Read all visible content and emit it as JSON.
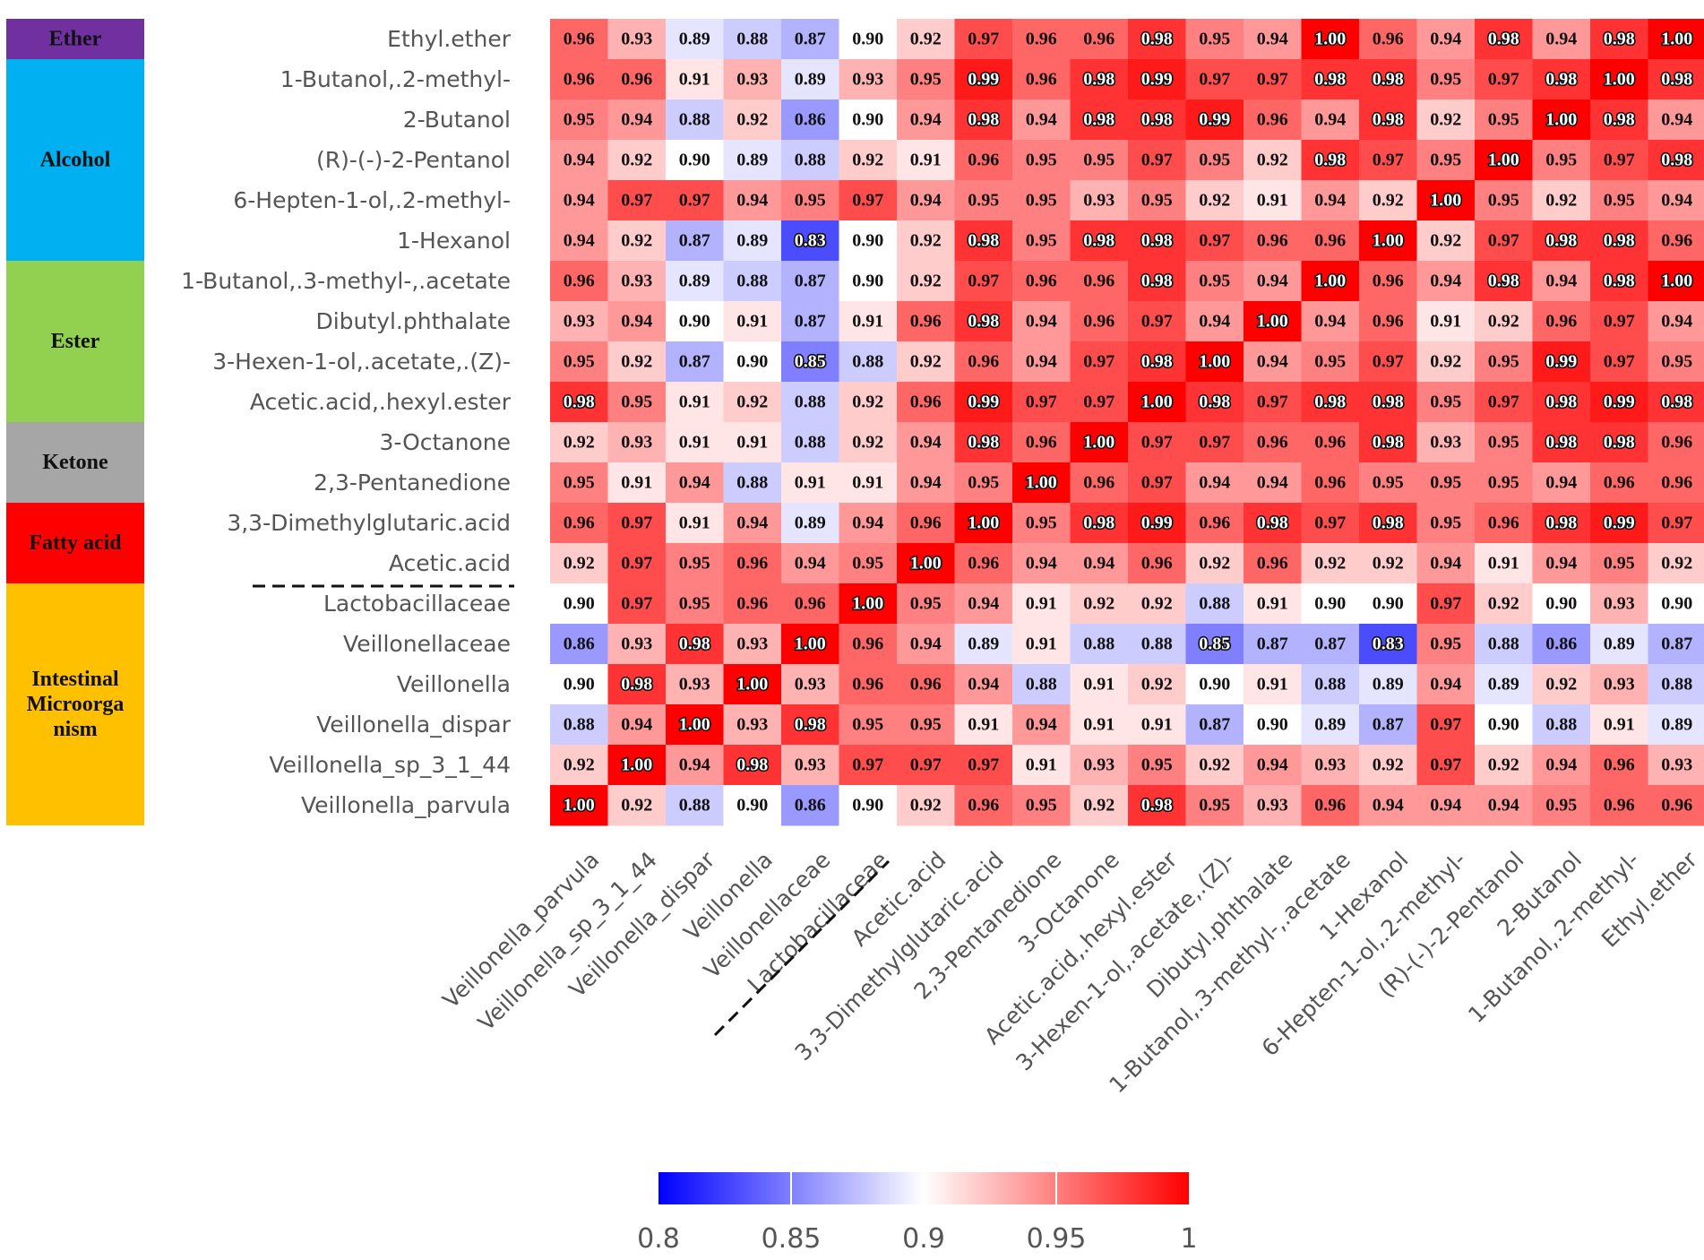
{
  "chart_data": {
    "type": "heatmap",
    "title": "",
    "row_labels": [
      "Ethyl.ether",
      "1-Butanol,.2-methyl-",
      "2-Butanol",
      "(R)-(-)-2-Pentanol",
      "6-Hepten-1-ol,.2-methyl-",
      "1-Hexanol",
      "1-Butanol,.3-methyl-,.acetate",
      "Dibutyl.phthalate",
      "3-Hexen-1-ol,.acetate,.(Z)-",
      "Acetic.acid,.hexyl.ester",
      "3-Octanone",
      "2,3-Pentanedione",
      "3,3-Dimethylglutaric.acid",
      "Acetic.acid",
      "Lactobacillaceae",
      "Veillonellaceae",
      "Veillonella",
      "Veillonella_dispar",
      "Veillonella_sp_3_1_44",
      "Veillonella_parvula"
    ],
    "col_labels": [
      "Veillonella_parvula",
      "Veillonella_sp_3_1_44",
      "Veillonella_dispar",
      "Veillonella",
      "Veillonellaceae",
      "Lactobacillaceae",
      "Acetic.acid",
      "3,3-Dimethylglutaric.acid",
      "2,3-Pentanedione",
      "3-Octanone",
      "Acetic.acid,.hexyl.ester",
      "3-Hexen-1-ol,.acetate,.(Z)-",
      "Dibutyl.phthalate",
      "1-Butanol,.3-methyl-,.acetate",
      "1-Hexanol",
      "6-Hepten-1-ol,.2-methyl-",
      "(R)-(-)-2-Pentanol",
      "2-Butanol",
      "1-Butanol,.2-methyl-",
      "Ethyl.ether"
    ],
    "values": [
      [
        0.96,
        0.93,
        0.89,
        0.88,
        0.87,
        0.9,
        0.92,
        0.97,
        0.96,
        0.96,
        0.98,
        0.95,
        0.94,
        1.0,
        0.96,
        0.94,
        0.98,
        0.94,
        0.98,
        1.0
      ],
      [
        0.96,
        0.96,
        0.91,
        0.93,
        0.89,
        0.93,
        0.95,
        0.99,
        0.96,
        0.98,
        0.99,
        0.97,
        0.97,
        0.98,
        0.98,
        0.95,
        0.97,
        0.98,
        1.0,
        0.98
      ],
      [
        0.95,
        0.94,
        0.88,
        0.92,
        0.86,
        0.9,
        0.94,
        0.98,
        0.94,
        0.98,
        0.98,
        0.99,
        0.96,
        0.94,
        0.98,
        0.92,
        0.95,
        1.0,
        0.98,
        0.94
      ],
      [
        0.94,
        0.92,
        0.9,
        0.89,
        0.88,
        0.92,
        0.91,
        0.96,
        0.95,
        0.95,
        0.97,
        0.95,
        0.92,
        0.98,
        0.97,
        0.95,
        1.0,
        0.95,
        0.97,
        0.98
      ],
      [
        0.94,
        0.97,
        0.97,
        0.94,
        0.95,
        0.97,
        0.94,
        0.95,
        0.95,
        0.93,
        0.95,
        0.92,
        0.91,
        0.94,
        0.92,
        1.0,
        0.95,
        0.92,
        0.95,
        0.94
      ],
      [
        0.94,
        0.92,
        0.87,
        0.89,
        0.83,
        0.9,
        0.92,
        0.98,
        0.95,
        0.98,
        0.98,
        0.97,
        0.96,
        0.96,
        1.0,
        0.92,
        0.97,
        0.98,
        0.98,
        0.96
      ],
      [
        0.96,
        0.93,
        0.89,
        0.88,
        0.87,
        0.9,
        0.92,
        0.97,
        0.96,
        0.96,
        0.98,
        0.95,
        0.94,
        1.0,
        0.96,
        0.94,
        0.98,
        0.94,
        0.98,
        1.0
      ],
      [
        0.93,
        0.94,
        0.9,
        0.91,
        0.87,
        0.91,
        0.96,
        0.98,
        0.94,
        0.96,
        0.97,
        0.94,
        1.0,
        0.94,
        0.96,
        0.91,
        0.92,
        0.96,
        0.97,
        0.94
      ],
      [
        0.95,
        0.92,
        0.87,
        0.9,
        0.85,
        0.88,
        0.92,
        0.96,
        0.94,
        0.97,
        0.98,
        1.0,
        0.94,
        0.95,
        0.97,
        0.92,
        0.95,
        0.99,
        0.97,
        0.95
      ],
      [
        0.98,
        0.95,
        0.91,
        0.92,
        0.88,
        0.92,
        0.96,
        0.99,
        0.97,
        0.97,
        1.0,
        0.98,
        0.97,
        0.98,
        0.98,
        0.95,
        0.97,
        0.98,
        0.99,
        0.98
      ],
      [
        0.92,
        0.93,
        0.91,
        0.91,
        0.88,
        0.92,
        0.94,
        0.98,
        0.96,
        1.0,
        0.97,
        0.97,
        0.96,
        0.96,
        0.98,
        0.93,
        0.95,
        0.98,
        0.98,
        0.96
      ],
      [
        0.95,
        0.91,
        0.94,
        0.88,
        0.91,
        0.91,
        0.94,
        0.95,
        1.0,
        0.96,
        0.97,
        0.94,
        0.94,
        0.96,
        0.95,
        0.95,
        0.95,
        0.94,
        0.96,
        0.96
      ],
      [
        0.96,
        0.97,
        0.91,
        0.94,
        0.89,
        0.94,
        0.96,
        1.0,
        0.95,
        0.98,
        0.99,
        0.96,
        0.98,
        0.97,
        0.98,
        0.95,
        0.96,
        0.98,
        0.99,
        0.97
      ],
      [
        0.92,
        0.97,
        0.95,
        0.96,
        0.94,
        0.95,
        1.0,
        0.96,
        0.94,
        0.94,
        0.96,
        0.92,
        0.96,
        0.92,
        0.92,
        0.94,
        0.91,
        0.94,
        0.95,
        0.92
      ],
      [
        0.9,
        0.97,
        0.95,
        0.96,
        0.96,
        1.0,
        0.95,
        0.94,
        0.91,
        0.92,
        0.92,
        0.88,
        0.91,
        0.9,
        0.9,
        0.97,
        0.92,
        0.9,
        0.93,
        0.9
      ],
      [
        0.86,
        0.93,
        0.98,
        0.93,
        1.0,
        0.96,
        0.94,
        0.89,
        0.91,
        0.88,
        0.88,
        0.85,
        0.87,
        0.87,
        0.83,
        0.95,
        0.88,
        0.86,
        0.89,
        0.87
      ],
      [
        0.9,
        0.98,
        0.93,
        1.0,
        0.93,
        0.96,
        0.96,
        0.94,
        0.88,
        0.91,
        0.92,
        0.9,
        0.91,
        0.88,
        0.89,
        0.94,
        0.89,
        0.92,
        0.93,
        0.88
      ],
      [
        0.88,
        0.94,
        1.0,
        0.93,
        0.98,
        0.95,
        0.95,
        0.91,
        0.94,
        0.91,
        0.91,
        0.87,
        0.9,
        0.89,
        0.87,
        0.97,
        0.9,
        0.88,
        0.91,
        0.89
      ],
      [
        0.92,
        1.0,
        0.94,
        0.98,
        0.93,
        0.97,
        0.97,
        0.97,
        0.91,
        0.93,
        0.95,
        0.92,
        0.94,
        0.93,
        0.92,
        0.97,
        0.92,
        0.94,
        0.96,
        0.93
      ],
      [
        1.0,
        0.92,
        0.88,
        0.9,
        0.86,
        0.9,
        0.92,
        0.96,
        0.95,
        0.92,
        0.98,
        0.95,
        0.93,
        0.96,
        0.94,
        0.94,
        0.94,
        0.95,
        0.96,
        0.96
      ]
    ],
    "value_range": [
      0.8,
      1.0
    ],
    "colorbar": {
      "ticks": [
        0.8,
        0.85,
        0.9,
        0.95,
        1
      ],
      "tick_labels": [
        "0.8",
        "0.85",
        "0.9",
        "0.95",
        "1"
      ],
      "low_color": "#0000ff",
      "mid_color": "#ffffff",
      "high_color": "#ff0000",
      "mid_value": 0.9
    },
    "categories": [
      {
        "name": "Ether",
        "display": [
          "Ether"
        ],
        "color": "#7030a0",
        "rows": [
          0
        ]
      },
      {
        "name": "Alcohol",
        "display": [
          "Alcohol"
        ],
        "color": "#00b0f0",
        "rows": [
          1,
          2,
          3,
          4,
          5
        ]
      },
      {
        "name": "Ester",
        "display": [
          "Ester"
        ],
        "color": "#92d050",
        "rows": [
          6,
          7,
          8,
          9
        ]
      },
      {
        "name": "Ketone",
        "display": [
          "Ketone"
        ],
        "color": "#a6a6a6",
        "rows": [
          10,
          11
        ]
      },
      {
        "name": "Fatty acid",
        "display": [
          "Fatty acid"
        ],
        "color": "#ff0000",
        "rows": [
          12,
          13
        ]
      },
      {
        "name": "Intestinal Microorganism",
        "display": [
          "Intestinal",
          "Microorga",
          "nism"
        ],
        "color": "#ffc000",
        "rows": [
          14,
          15,
          16,
          17,
          18,
          19
        ]
      }
    ],
    "separator_note": "dashed line between Acetic.acid and Lactobacillaceae"
  }
}
